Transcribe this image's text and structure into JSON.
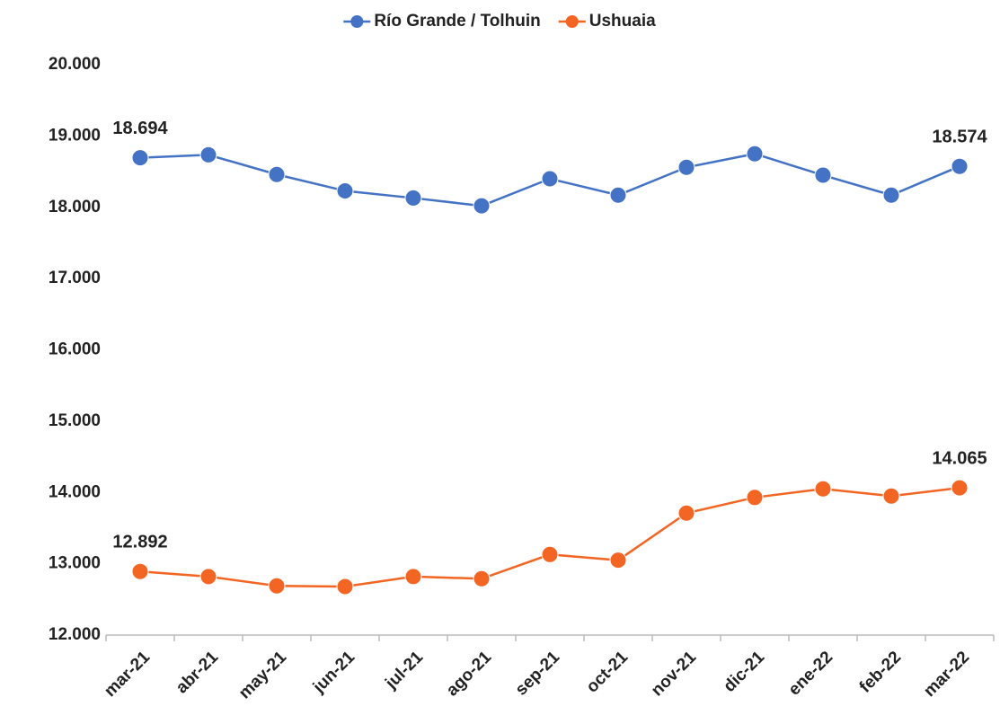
{
  "chart_data": {
    "type": "line",
    "categories": [
      "mar-21",
      "abr-21",
      "may-21",
      "jun-21",
      "jul-21",
      "ago-21",
      "sep-21",
      "oct-21",
      "nov-21",
      "dic-21",
      "ene-22",
      "feb-22",
      "mar-22"
    ],
    "series": [
      {
        "name": "Río Grande / Tolhuin",
        "color": "#4472c4",
        "values": [
          18694,
          18735,
          18460,
          18230,
          18130,
          18020,
          18400,
          18170,
          18560,
          18750,
          18450,
          18170,
          18574
        ],
        "value_labels": [
          "18.694",
          null,
          null,
          null,
          null,
          null,
          null,
          null,
          null,
          null,
          null,
          null,
          "18.574"
        ]
      },
      {
        "name": "Ushuaia",
        "color": "#f26522",
        "values": [
          12892,
          12820,
          12690,
          12680,
          12820,
          12790,
          13130,
          13050,
          13710,
          13930,
          14050,
          13950,
          14065
        ],
        "value_labels": [
          "12.892",
          null,
          null,
          null,
          null,
          null,
          null,
          null,
          null,
          null,
          null,
          null,
          "14.065"
        ]
      }
    ],
    "ylim": [
      12000,
      20000
    ],
    "yticks": [
      {
        "value": 12000,
        "label": "12.000"
      },
      {
        "value": 13000,
        "label": "13.000"
      },
      {
        "value": 14000,
        "label": "14.000"
      },
      {
        "value": 15000,
        "label": "15.000"
      },
      {
        "value": 16000,
        "label": "16.000"
      },
      {
        "value": 17000,
        "label": "17.000"
      },
      {
        "value": 18000,
        "label": "18.000"
      },
      {
        "value": 19000,
        "label": "19.000"
      },
      {
        "value": 20000,
        "label": "20.000"
      }
    ],
    "legend": "top",
    "grid": false
  }
}
